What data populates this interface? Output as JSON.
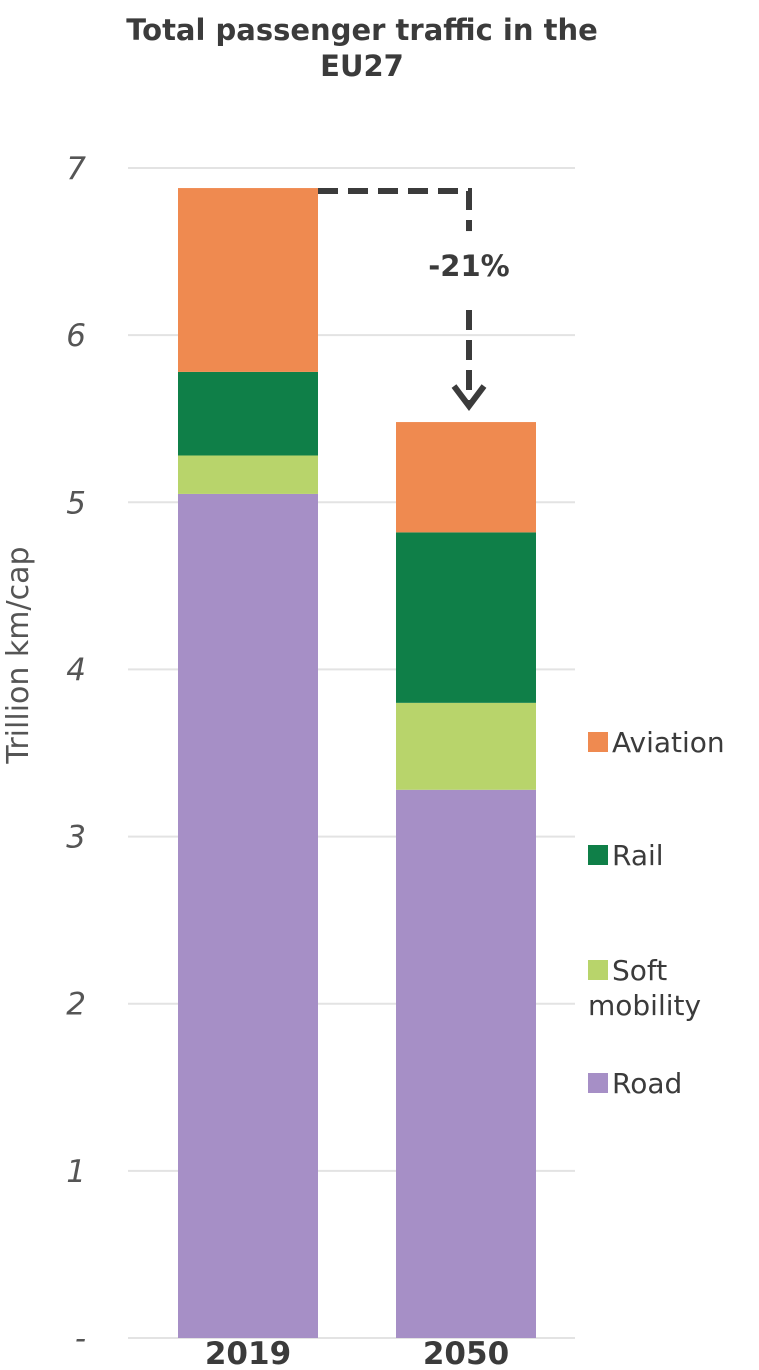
{
  "chart_data": {
    "type": "bar",
    "stacked": true,
    "title": "Total passenger traffic in the EU27",
    "title_lines": [
      "Total passenger traffic in the",
      "EU27"
    ],
    "ylabel": "Trillion km/cap",
    "categories": [
      "2019",
      "2050"
    ],
    "ylim": [
      0,
      7
    ],
    "yticks": [
      {
        "value": 0,
        "label": "-"
      },
      {
        "value": 1,
        "label": "1"
      },
      {
        "value": 2,
        "label": "2"
      },
      {
        "value": 3,
        "label": "3"
      },
      {
        "value": 4,
        "label": "4"
      },
      {
        "value": 5,
        "label": "5"
      },
      {
        "value": 6,
        "label": "6"
      },
      {
        "value": 7,
        "label": "7"
      }
    ],
    "grid": true,
    "legend_position": "right",
    "series": [
      {
        "name": "Road",
        "color": "#a68fc6",
        "values": [
          5.05,
          3.28
        ]
      },
      {
        "name": "Soft mobility",
        "color": "#b8d46b",
        "values": [
          0.23,
          0.52
        ]
      },
      {
        "name": "Rail",
        "color": "#0f7f48",
        "values": [
          0.5,
          1.02
        ]
      },
      {
        "name": "Aviation",
        "color": "#ef8a50",
        "values": [
          1.1,
          0.66
        ]
      }
    ],
    "legend": [
      {
        "lines": [
          "Aviation"
        ],
        "color": "#ef8a50"
      },
      {
        "lines": [
          "Rail"
        ],
        "color": "#0f7f48"
      },
      {
        "lines": [
          "Soft",
          "mobility"
        ],
        "color": "#b8d46b"
      },
      {
        "lines": [
          "Road"
        ],
        "color": "#a68fc6"
      }
    ],
    "annotations": [
      {
        "text": "-21%",
        "from_category": "2019",
        "to_category": "2050",
        "style": "dashed-arrow"
      }
    ]
  }
}
